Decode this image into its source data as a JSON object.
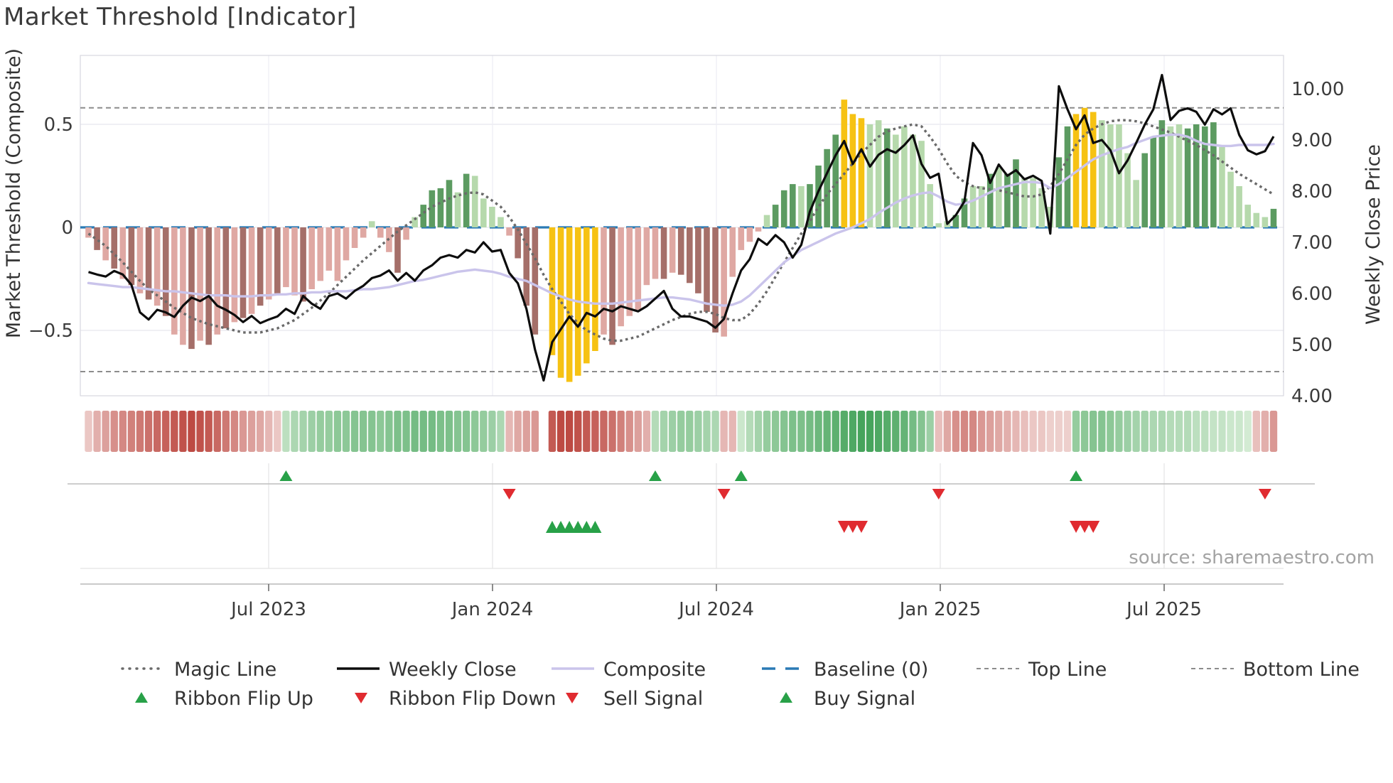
{
  "title": "Market Threshold [Indicator]",
  "source_text": "source: sharemaestro.com",
  "axes": {
    "left": {
      "label": "Market Threshold (Composite)",
      "ticks": [
        "0.5",
        "0",
        "−0.5"
      ]
    },
    "right": {
      "label": "Weekly Close Price",
      "ticks": [
        "10.00",
        "9.00",
        "8.00",
        "7.00",
        "6.00",
        "5.00",
        "4.00"
      ]
    },
    "x": {
      "ticks": [
        "Jul 2023",
        "Jan 2024",
        "Jul 2024",
        "Jan 2025",
        "Jul 2025"
      ]
    }
  },
  "legend": {
    "magic": "Magic Line",
    "weekly_close": "Weekly Close",
    "composite": "Composite",
    "baseline": "Baseline (0)",
    "top_line": "Top Line",
    "bottom_line": "Bottom Line",
    "flip_up": "Ribbon Flip Up",
    "flip_down": "Ribbon Flip Down",
    "sell": "Sell Signal",
    "buy": "Buy Signal"
  },
  "colors": {
    "bar_light_red": "#dfa8a3",
    "bar_dark_red": "#a56f69",
    "bar_highlight_yellow": "#f6c213",
    "bar_light_green": "#b6d9ac",
    "bar_dark_green": "#5c9b61",
    "weekly_close": "#0d0d0d",
    "composite_line": "#cac4eb",
    "magic_line": "#6a6a6a",
    "baseline": "#2a7ab5",
    "top_bottom_line": "#8c8c8c",
    "ribbon_red_light": "#f6e6e4",
    "ribbon_red_dark": "#bd4a43",
    "ribbon_green_light": "#e3f3e0",
    "ribbon_green_dark": "#46a45c",
    "signal_green": "#28a148",
    "signal_red": "#e02b30"
  },
  "chart_data": {
    "type": "combo (bar + line, weekly)",
    "x_start": "Feb 2023",
    "x_end": "Sep 2025",
    "points": 139,
    "left_axis_range": [
      -0.82,
      0.83
    ],
    "right_axis_range": [
      3.99,
      10.64
    ],
    "baseline": 0,
    "top_line": 0.58,
    "bottom_line": -0.7,
    "bar_color_key": {
      "P": "light_red",
      "D": "dark_red",
      "Y": "highlight_yellow",
      "L": "light_green",
      "G": "dark_green",
      ".": "none"
    },
    "composite_bars": [
      -0.05,
      -0.11,
      -0.16,
      -0.2,
      -0.25,
      -0.28,
      -0.32,
      -0.35,
      -0.38,
      -0.43,
      -0.52,
      -0.57,
      -0.59,
      -0.55,
      -0.57,
      -0.52,
      -0.49,
      -0.46,
      -0.44,
      -0.42,
      -0.38,
      -0.35,
      -0.32,
      -0.29,
      -0.33,
      -0.36,
      -0.3,
      -0.26,
      -0.21,
      -0.26,
      -0.16,
      -0.1,
      -0.05,
      0.03,
      -0.05,
      -0.12,
      -0.22,
      -0.06,
      0.05,
      0.11,
      0.18,
      0.19,
      0.23,
      0.17,
      0.26,
      0.25,
      0.14,
      0.1,
      0.05,
      -0.04,
      -0.15,
      -0.38,
      -0.52,
      0,
      -0.62,
      -0.73,
      -0.75,
      -0.72,
      -0.66,
      -0.6,
      -0.52,
      -0.57,
      -0.48,
      -0.43,
      -0.4,
      -0.28,
      -0.25,
      -0.25,
      -0.22,
      -0.23,
      -0.27,
      -0.32,
      -0.41,
      -0.51,
      -0.53,
      -0.24,
      -0.11,
      -0.07,
      -0.02,
      0.06,
      0.11,
      0.18,
      0.21,
      0.2,
      0.21,
      0.3,
      0.38,
      0.45,
      0.62,
      0.55,
      0.53,
      0.5,
      0.52,
      0.48,
      0.45,
      0.49,
      0.45,
      0.42,
      0.21,
      0.02,
      0.03,
      0.06,
      0.14,
      0.2,
      0.2,
      0.26,
      0.29,
      0.26,
      0.33,
      0.24,
      0.24,
      0.19,
      0.1,
      0.34,
      0.49,
      0.55,
      0.58,
      0.56,
      0.52,
      0.5,
      0.5,
      0.36,
      0.23,
      0.36,
      0.44,
      0.52,
      0.49,
      0.5,
      0.48,
      0.5,
      0.49,
      0.51,
      0.39,
      0.27,
      0.2,
      0.11,
      0.07,
      0.05,
      0.09
    ],
    "bar_colors": "PDPDPDPDPDPPDPDPDPDPDPDPPDPPPPPPPLPPDPLGGGGLGLLLLPDDD.YYYYYYPDPPPPPDPDDDDDPPPPPLGGGLGGGGYYYLLGLLLLLLLGGLLGLGGLLLLGGYYYLLLLLGGGLLGGGGLLLLLLG",
    "weekly_close": [
      6.42,
      6.37,
      6.33,
      6.44,
      6.37,
      6.17,
      5.63,
      5.49,
      5.68,
      5.63,
      5.54,
      5.76,
      5.92,
      5.85,
      5.95,
      5.76,
      5.68,
      5.58,
      5.44,
      5.56,
      5.42,
      5.49,
      5.55,
      5.7,
      5.6,
      5.95,
      5.8,
      5.7,
      5.95,
      6.0,
      5.9,
      6.05,
      6.15,
      6.3,
      6.35,
      6.45,
      6.25,
      6.4,
      6.25,
      6.45,
      6.55,
      6.7,
      6.75,
      6.7,
      6.85,
      6.8,
      7.0,
      6.82,
      6.85,
      6.4,
      6.2,
      5.7,
      4.9,
      4.3,
      5.05,
      5.3,
      5.55,
      5.35,
      5.62,
      5.55,
      5.7,
      5.65,
      5.75,
      5.7,
      5.65,
      5.75,
      5.9,
      6.05,
      5.7,
      5.55,
      5.55,
      5.5,
      5.45,
      5.33,
      5.5,
      6.0,
      6.45,
      6.67,
      7.07,
      6.95,
      7.14,
      7.0,
      6.7,
      6.95,
      7.6,
      8.0,
      8.35,
      8.7,
      8.98,
      8.53,
      8.82,
      8.48,
      8.71,
      8.82,
      8.75,
      8.9,
      9.09,
      8.53,
      8.26,
      8.34,
      7.36,
      7.53,
      7.8,
      8.94,
      8.7,
      8.16,
      8.52,
      8.3,
      8.41,
      8.23,
      8.3,
      8.2,
      7.17,
      10.05,
      9.6,
      9.21,
      9.48,
      8.94,
      9.0,
      8.8,
      8.35,
      8.6,
      8.94,
      9.3,
      9.6,
      10.27,
      9.39,
      9.57,
      9.62,
      9.55,
      9.3,
      9.6,
      9.5,
      9.62,
      9.1,
      8.8,
      8.72,
      8.78,
      9.07
    ],
    "composite_line": [
      -0.27,
      -0.275,
      -0.28,
      -0.285,
      -0.29,
      -0.29,
      -0.295,
      -0.3,
      -0.305,
      -0.31,
      -0.31,
      -0.315,
      -0.32,
      -0.325,
      -0.33,
      -0.33,
      -0.33,
      -0.335,
      -0.335,
      -0.335,
      -0.33,
      -0.33,
      -0.325,
      -0.325,
      -0.32,
      -0.32,
      -0.315,
      -0.315,
      -0.31,
      -0.31,
      -0.31,
      -0.305,
      -0.3,
      -0.3,
      -0.295,
      -0.29,
      -0.28,
      -0.27,
      -0.26,
      -0.255,
      -0.245,
      -0.235,
      -0.225,
      -0.215,
      -0.21,
      -0.205,
      -0.21,
      -0.215,
      -0.225,
      -0.24,
      -0.25,
      -0.26,
      -0.28,
      -0.3,
      -0.32,
      -0.335,
      -0.35,
      -0.36,
      -0.365,
      -0.37,
      -0.37,
      -0.37,
      -0.365,
      -0.36,
      -0.355,
      -0.35,
      -0.345,
      -0.34,
      -0.34,
      -0.345,
      -0.35,
      -0.36,
      -0.37,
      -0.375,
      -0.38,
      -0.375,
      -0.36,
      -0.33,
      -0.29,
      -0.25,
      -0.21,
      -0.17,
      -0.14,
      -0.11,
      -0.09,
      -0.07,
      -0.05,
      -0.03,
      -0.015,
      0.0,
      0.02,
      0.04,
      0.07,
      0.095,
      0.12,
      0.14,
      0.155,
      0.165,
      0.17,
      0.15,
      0.125,
      0.11,
      0.115,
      0.13,
      0.15,
      0.17,
      0.19,
      0.2,
      0.21,
      0.22,
      0.22,
      0.215,
      0.19,
      0.21,
      0.24,
      0.27,
      0.3,
      0.33,
      0.35,
      0.365,
      0.38,
      0.39,
      0.41,
      0.425,
      0.44,
      0.445,
      0.45,
      0.45,
      0.44,
      0.42,
      0.405,
      0.4,
      0.395,
      0.395,
      0.4,
      0.4,
      0.4,
      0.4,
      0.405
    ],
    "magic_line": [
      -0.03,
      -0.06,
      -0.09,
      -0.13,
      -0.17,
      -0.215,
      -0.26,
      -0.3,
      -0.33,
      -0.36,
      -0.39,
      -0.415,
      -0.44,
      -0.455,
      -0.47,
      -0.48,
      -0.49,
      -0.5,
      -0.51,
      -0.51,
      -0.51,
      -0.5,
      -0.49,
      -0.47,
      -0.45,
      -0.42,
      -0.39,
      -0.355,
      -0.32,
      -0.28,
      -0.24,
      -0.2,
      -0.16,
      -0.125,
      -0.09,
      -0.055,
      -0.02,
      0.01,
      0.04,
      0.07,
      0.1,
      0.12,
      0.14,
      0.155,
      0.165,
      0.17,
      0.16,
      0.13,
      0.1,
      0.05,
      -0.01,
      -0.08,
      -0.15,
      -0.23,
      -0.3,
      -0.36,
      -0.42,
      -0.465,
      -0.5,
      -0.52,
      -0.54,
      -0.55,
      -0.55,
      -0.54,
      -0.53,
      -0.51,
      -0.49,
      -0.47,
      -0.45,
      -0.435,
      -0.42,
      -0.41,
      -0.41,
      -0.42,
      -0.44,
      -0.45,
      -0.45,
      -0.42,
      -0.37,
      -0.31,
      -0.24,
      -0.17,
      -0.1,
      -0.03,
      0.03,
      0.1,
      0.16,
      0.21,
      0.26,
      0.31,
      0.36,
      0.4,
      0.44,
      0.465,
      0.48,
      0.49,
      0.5,
      0.49,
      0.44,
      0.38,
      0.31,
      0.25,
      0.22,
      0.2,
      0.19,
      0.185,
      0.18,
      0.17,
      0.16,
      0.15,
      0.15,
      0.16,
      0.2,
      0.26,
      0.33,
      0.4,
      0.45,
      0.48,
      0.5,
      0.515,
      0.52,
      0.52,
      0.515,
      0.505,
      0.49,
      0.475,
      0.46,
      0.44,
      0.42,
      0.4,
      0.375,
      0.35,
      0.32,
      0.29,
      0.26,
      0.235,
      0.21,
      0.185,
      0.16
    ],
    "ribbon_intensity": [
      -0.2,
      -0.35,
      -0.45,
      -0.55,
      -0.6,
      -0.65,
      -0.7,
      -0.75,
      -0.8,
      -0.85,
      -0.9,
      -0.95,
      -1,
      -0.95,
      -0.9,
      -0.8,
      -0.7,
      -0.6,
      -0.5,
      -0.45,
      -0.4,
      -0.3,
      -0.2,
      0.25,
      0.35,
      0.4,
      0.45,
      0.5,
      0.5,
      0.55,
      0.55,
      0.6,
      0.6,
      0.6,
      0.55,
      0.6,
      0.65,
      0.65,
      0.7,
      0.7,
      0.7,
      0.65,
      0.65,
      0.6,
      0.6,
      0.55,
      0.5,
      0.45,
      0.35,
      -0.3,
      -0.4,
      -0.45,
      -0.5,
      0,
      -0.9,
      -1,
      -1,
      -0.95,
      -0.9,
      -0.85,
      -0.8,
      -0.75,
      -0.65,
      -0.55,
      -0.45,
      -0.35,
      0.3,
      0.4,
      0.45,
      0.5,
      0.5,
      0.45,
      0.4,
      0.35,
      -0.3,
      -0.3,
      0.15,
      0.3,
      0.4,
      0.5,
      0.55,
      0.6,
      0.65,
      0.65,
      0.7,
      0.75,
      0.8,
      0.85,
      0.9,
      0.95,
      1,
      1,
      0.95,
      0.9,
      0.85,
      0.8,
      0.7,
      0.6,
      0.45,
      -0.25,
      -0.4,
      -0.55,
      -0.6,
      -0.6,
      -0.5,
      -0.45,
      -0.4,
      -0.35,
      -0.3,
      -0.25,
      -0.2,
      -0.2,
      -0.15,
      -0.15,
      -0.15,
      0.5,
      0.55,
      0.6,
      0.6,
      0.55,
      0.5,
      0.45,
      0.4,
      0.4,
      0.35,
      0.35,
      0.3,
      0.3,
      0.3,
      0.25,
      0.25,
      0.2,
      0.2,
      0.15,
      0.15,
      0.1,
      -0.25,
      -0.35,
      -0.5
    ],
    "markers": {
      "ribbon_flip_up_weeks": [
        23,
        66,
        76,
        115
      ],
      "ribbon_flip_down_weeks": [
        49,
        74,
        99,
        137
      ],
      "buy_signal_weeks": [
        54,
        55,
        56,
        57,
        58,
        59
      ],
      "sell_signal_weeks": [
        88,
        89,
        90,
        115,
        116,
        117
      ]
    }
  }
}
